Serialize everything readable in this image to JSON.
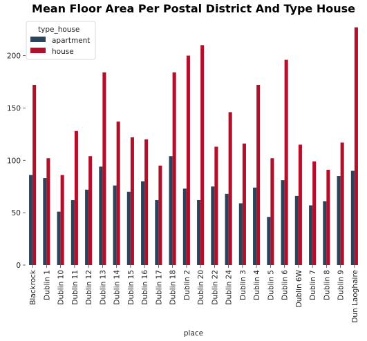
{
  "chart_data": {
    "type": "bar",
    "title": "Mean Floor Area Per Postal District And Type House",
    "xlabel": "place",
    "ylabel": "",
    "ylim": [
      0,
      232
    ],
    "yticks": [
      0,
      50,
      100,
      150,
      200
    ],
    "legend": {
      "title": "type_house",
      "placement": "top-left"
    },
    "categories": [
      "Blackrock",
      "Dublin 1",
      "Dublin 10",
      "Dublin 11",
      "Dublin 12",
      "Dublin 13",
      "Dublin 14",
      "Dublin 15",
      "Dublin 16",
      "Dublin 17",
      "Dublin 18",
      "Dublin 2",
      "Dublin 20",
      "Dublin 22",
      "Dublin 24",
      "Dublin 3",
      "Dublin 4",
      "Dublin 5",
      "Dublin 6",
      "Dublin 6W",
      "Dublin 7",
      "Dublin 8",
      "Dublin 9",
      "Dun Laoghaire"
    ],
    "series": [
      {
        "name": "apartment",
        "color": "#2d4359",
        "values": [
          86,
          83,
          51,
          62,
          72,
          94,
          76,
          70,
          80,
          62,
          104,
          73,
          62,
          75,
          68,
          59,
          74,
          46,
          81,
          66,
          57,
          61,
          85,
          90
        ]
      },
      {
        "name": "house",
        "color": "#b2102a",
        "values": [
          172,
          102,
          86,
          128,
          104,
          184,
          137,
          122,
          120,
          95,
          184,
          200,
          210,
          113,
          146,
          116,
          172,
          102,
          196,
          115,
          99,
          91,
          117,
          227
        ]
      }
    ]
  }
}
